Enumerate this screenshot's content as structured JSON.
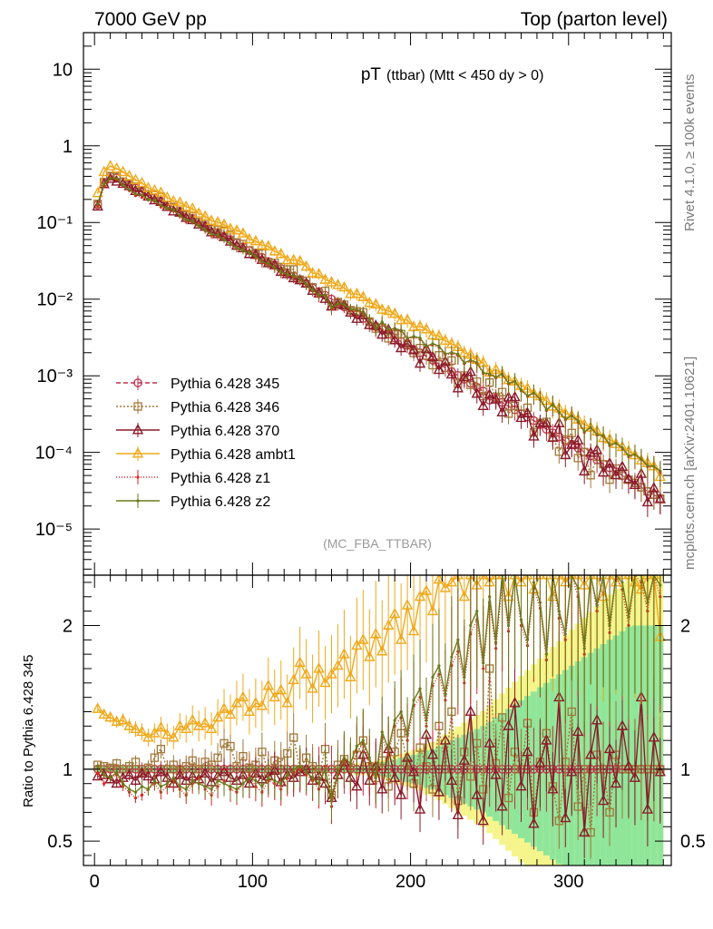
{
  "header": {
    "left": "7000 GeV pp",
    "right": "Top (parton level)"
  },
  "side_labels": {
    "top": "Rivet 4.1.0, ≥ 100k events",
    "bottom": "mcplots.cern.ch [arXiv:2401.10621]"
  },
  "chart_data": {
    "type": "line",
    "title": "pT",
    "title_suffix": "(ttbar) (Mtt < 450 dy > 0)",
    "watermark": "(MC_FBA_TTBAR)",
    "xlabel": "",
    "ylabel": "",
    "ratio_ylabel": "Ratio to Pythia 6.428 345",
    "xlim": [
      -7,
      365
    ],
    "ylim": [
      2.5e-06,
      30
    ],
    "ratio_ylim": [
      0.33,
      2.35
    ],
    "yscale": "log",
    "x_ticks": [
      "0",
      "100",
      "200",
      "300"
    ],
    "y_ticks": [
      "10",
      "1",
      "10⁻¹",
      "10⁻²",
      "10⁻³",
      "10⁻⁴",
      "10⁻⁵"
    ],
    "ratio_ticks": [
      "2",
      "1",
      "0.5"
    ],
    "legend_position": "bottom-left",
    "x": [
      2,
      6,
      10,
      14,
      18,
      22,
      26,
      30,
      34,
      38,
      42,
      46,
      50,
      54,
      58,
      62,
      66,
      70,
      74,
      78,
      82,
      86,
      90,
      94,
      98,
      102,
      106,
      110,
      114,
      118,
      122,
      126,
      130,
      134,
      138,
      142,
      146,
      150,
      154,
      158,
      162,
      166,
      170,
      174,
      178,
      182,
      186,
      190,
      194,
      198,
      202,
      206,
      210,
      214,
      218,
      222,
      226,
      230,
      234,
      238,
      242,
      246,
      250,
      254,
      258,
      262,
      266,
      270,
      274,
      278,
      282,
      286,
      290,
      294,
      298,
      302,
      306,
      310,
      314,
      318,
      322,
      326,
      330,
      334,
      338,
      342,
      346,
      350,
      354,
      358
    ],
    "reference": {
      "name": "Pythia 6.428 345",
      "values": [
        0.17,
        0.33,
        0.4,
        0.38,
        0.34,
        0.31,
        0.28,
        0.26,
        0.23,
        0.21,
        0.19,
        0.17,
        0.155,
        0.14,
        0.125,
        0.113,
        0.101,
        0.091,
        0.082,
        0.074,
        0.066,
        0.06,
        0.054,
        0.048,
        0.043,
        0.039,
        0.035,
        0.031,
        0.028,
        0.025,
        0.022,
        0.02,
        0.018,
        0.016,
        0.014,
        0.0125,
        0.0112,
        0.01,
        0.0089,
        0.0079,
        0.0071,
        0.0063,
        0.0056,
        0.005,
        0.0044,
        0.004,
        0.0035,
        0.0031,
        0.0028,
        0.0025,
        0.0022,
        0.002,
        0.0018,
        0.0016,
        0.00142,
        0.00127,
        0.00113,
        0.00101,
        0.0009,
        0.0008,
        0.00071,
        0.00063,
        0.00048,
        0.00051,
        0.00045,
        0.0004,
        0.00036,
        0.00032,
        0.00029,
        0.00026,
        0.00023,
        0.0002,
        0.00018,
        0.00016,
        0.00014,
        0.000128,
        0.000114,
        0.000101,
        9e-05,
        8e-05,
        7e-05,
        6.3e-05,
        5.6e-05,
        5e-05,
        4.4e-05,
        4e-05,
        3.5e-05,
        3.1e-05,
        2.8e-05,
        2.5e-05
      ]
    },
    "uncertainty_band_half_width": [
      0.02,
      0.02,
      0.02,
      0.02,
      0.02,
      0.02,
      0.02,
      0.02,
      0.02,
      0.02,
      0.02,
      0.02,
      0.02,
      0.02,
      0.02,
      0.02,
      0.02,
      0.02,
      0.02,
      0.02,
      0.02,
      0.02,
      0.02,
      0.02,
      0.02,
      0.02,
      0.02,
      0.02,
      0.02,
      0.02,
      0.02,
      0.02,
      0.02,
      0.02,
      0.02,
      0.02,
      0.02,
      0.02,
      0.02,
      0.02,
      0.02,
      0.03,
      0.03,
      0.03,
      0.04,
      0.05,
      0.06,
      0.07,
      0.08,
      0.09,
      0.1,
      0.11,
      0.13,
      0.14,
      0.16,
      0.18,
      0.2,
      0.22,
      0.24,
      0.26,
      0.28,
      0.3,
      0.33,
      0.36,
      0.39,
      0.42,
      0.45,
      0.48,
      0.51,
      0.54,
      0.57,
      0.6,
      0.63,
      0.66,
      0.69,
      0.72,
      0.75,
      0.78,
      0.81,
      0.84,
      0.87,
      0.9,
      0.93,
      0.96,
      0.99,
      1.0,
      1.0,
      1.0,
      1.0,
      1.0
    ],
    "series": [
      {
        "name": "Pythia 6.428 345",
        "color": "#c0304c",
        "marker": "circle",
        "dash": "5,3",
        "ratio": [
          1.0,
          1.0,
          1.0,
          1.0,
          1.0,
          1.0,
          1.0,
          1.0,
          1.0,
          1.0,
          1.0,
          1.0,
          1.0,
          1.0,
          1.0,
          1.0,
          1.0,
          1.0,
          1.0,
          1.0,
          1.0,
          1.0,
          1.0,
          1.0,
          1.0,
          1.0,
          1.0,
          1.0,
          1.0,
          1.0,
          1.0,
          1.0,
          1.0,
          1.0,
          1.0,
          1.0,
          1.0,
          1.0,
          1.0,
          1.0,
          1.0,
          1.0,
          1.0,
          1.0,
          1.0,
          1.0,
          1.0,
          1.0,
          1.0,
          1.0,
          1.0,
          1.0,
          1.0,
          1.0,
          1.0,
          1.0,
          1.0,
          1.0,
          1.0,
          1.0,
          1.0,
          1.0,
          1.0,
          1.0,
          1.0,
          1.0,
          1.0,
          1.0,
          1.0,
          1.0,
          1.0,
          1.0,
          1.0,
          1.0,
          1.0,
          1.0,
          1.0,
          1.0,
          1.0,
          1.0,
          1.0,
          1.0,
          1.0,
          1.0,
          1.0,
          1.0,
          1.0,
          1.0,
          1.0,
          1.0
        ]
      },
      {
        "name": "Pythia 6.428 346",
        "color": "#a07838",
        "marker": "square",
        "dash": "2,2",
        "ratio": [
          1.03,
          1.02,
          1.01,
          1.04,
          1.0,
          1.02,
          1.05,
          0.98,
          1.01,
          1.08,
          1.14,
          1.0,
          1.03,
          0.99,
          1.02,
          1.06,
          1.0,
          1.05,
          1.03,
          1.08,
          1.18,
          1.16,
          1.02,
          1.09,
          1.01,
          1.03,
          1.12,
          0.98,
          1.06,
          1.05,
          1.11,
          1.22,
          1.0,
          1.08,
          1.02,
          0.96,
          1.14,
          0.82,
          1.03,
          1.07,
          1.01,
          1.1,
          1.2,
          1.02,
          0.94,
          1.06,
          0.88,
          1.12,
          1.25,
          1.04,
          0.9,
          1.15,
          1.02,
          0.86,
          1.3,
          1.0,
          1.4,
          0.78,
          1.12,
          0.95,
          1.18,
          0.86,
          1.7,
          1.04,
          1.36,
          0.8,
          1.12,
          1.0,
          1.32,
          0.7,
          1.05,
          1.25,
          0.88,
          0.64,
          1.05,
          1.4,
          0.74,
          1.0,
          0.56,
          1.1,
          1.0,
          0.7,
          1.1,
          1.0,
          1.0,
          1.0,
          1.0,
          1.0,
          1.0,
          1.0
        ]
      },
      {
        "name": "Pythia 6.428 370",
        "color": "#8b1a2a",
        "marker": "triangle",
        "dash": "",
        "ratio": [
          0.95,
          0.96,
          0.93,
          0.9,
          0.94,
          0.96,
          0.92,
          0.97,
          0.95,
          0.93,
          0.98,
          0.94,
          0.9,
          0.96,
          0.92,
          0.95,
          0.93,
          0.97,
          0.91,
          0.95,
          0.98,
          0.94,
          0.92,
          0.96,
          0.9,
          0.97,
          0.93,
          0.95,
          0.99,
          0.91,
          0.96,
          0.94,
          0.98,
          1.0,
          0.92,
          0.95,
          0.9,
          0.8,
          0.96,
          1.05,
          0.94,
          0.88,
          1.1,
          0.92,
          1.02,
          0.86,
          1.14,
          0.94,
          0.82,
          1.08,
          0.98,
          0.72,
          1.24,
          1.1,
          0.84,
          1.2,
          0.92,
          0.68,
          1.06,
          1.4,
          0.82,
          0.64,
          1.18,
          0.96,
          0.74,
          1.3,
          1.46,
          0.88,
          1.12,
          0.62,
          1.04,
          1.2,
          0.86,
          1.5,
          0.66,
          0.98,
          1.26,
          0.56,
          1.1,
          1.34,
          0.78,
          1.14,
          0.9,
          1.3,
          1.02,
          0.94,
          1.5,
          0.72,
          1.22,
          0.98
        ]
      },
      {
        "name": "Pythia 6.428 ambt1",
        "color": "#f0a818",
        "marker": "triangle",
        "dash": "",
        "ratio": [
          1.42,
          1.38,
          1.36,
          1.33,
          1.34,
          1.3,
          1.28,
          1.26,
          1.22,
          1.25,
          1.29,
          1.24,
          1.22,
          1.3,
          1.28,
          1.34,
          1.3,
          1.32,
          1.28,
          1.36,
          1.42,
          1.38,
          1.46,
          1.5,
          1.4,
          1.46,
          1.44,
          1.58,
          1.5,
          1.55,
          1.46,
          1.62,
          1.74,
          1.66,
          1.56,
          1.7,
          1.6,
          1.66,
          1.72,
          1.8,
          1.64,
          1.86,
          1.9,
          1.78,
          1.94,
          1.82,
          2.0,
          2.08,
          1.9,
          2.14,
          1.96,
          2.2,
          2.24,
          2.1,
          2.32,
          2.26,
          2.3,
          2.35,
          2.2,
          2.35,
          2.28,
          2.35,
          2.3,
          2.35,
          2.35,
          2.2,
          2.35,
          2.3,
          2.35,
          2.25,
          2.35,
          2.35,
          2.2,
          2.35,
          2.3,
          2.35,
          2.35,
          2.28,
          2.35,
          2.35,
          2.2,
          2.35,
          2.3,
          2.35,
          2.35,
          2.3,
          2.25,
          2.35,
          2.35,
          1.92
        ]
      },
      {
        "name": "Pythia 6.428 z1",
        "color": "#e02020",
        "marker": "dot",
        "dash": "1,2",
        "ratio": [
          0.97,
          0.9,
          0.94,
          0.96,
          0.88,
          0.84,
          0.8,
          0.82,
          0.86,
          0.9,
          0.84,
          0.88,
          0.92,
          0.86,
          0.82,
          0.9,
          0.94,
          0.86,
          0.82,
          0.88,
          0.92,
          0.86,
          0.84,
          0.9,
          0.96,
          0.88,
          0.84,
          0.92,
          0.9,
          0.86,
          0.94,
          0.98,
          1.0,
          0.96,
          0.92,
          0.86,
          1.02,
          0.74,
          0.96,
          1.06,
          1.0,
          1.12,
          1.18,
          1.04,
          0.9,
          1.22,
          1.1,
          1.3,
          1.36,
          1.2,
          1.44,
          1.5,
          1.3,
          1.58,
          1.66,
          1.48,
          1.72,
          1.82,
          1.6,
          1.94,
          2.04,
          1.7,
          2.16,
          1.84,
          2.3,
          1.96,
          2.35,
          2.0,
          1.86,
          2.26,
          2.12,
          1.76,
          2.35,
          2.05,
          1.9,
          2.35,
          2.2,
          1.8,
          2.35,
          2.1,
          2.35,
          1.95,
          2.35,
          2.25,
          2.0,
          2.35,
          2.3,
          2.1,
          2.35,
          2.2
        ]
      },
      {
        "name": "Pythia 6.428 z2",
        "color": "#6b7a18",
        "marker": "dot",
        "dash": "",
        "ratio": [
          1.02,
          0.96,
          0.94,
          0.98,
          0.9,
          0.86,
          0.84,
          0.88,
          0.86,
          0.92,
          0.88,
          0.9,
          0.94,
          0.88,
          0.86,
          0.92,
          0.9,
          0.88,
          0.86,
          0.92,
          0.9,
          0.88,
          0.86,
          0.9,
          0.94,
          0.92,
          0.88,
          0.94,
          0.92,
          0.9,
          0.96,
          1.0,
          1.02,
          0.98,
          0.94,
          0.9,
          1.0,
          0.78,
          0.98,
          1.08,
          1.04,
          1.16,
          1.2,
          1.08,
          0.94,
          1.26,
          1.14,
          1.34,
          1.4,
          1.24,
          1.48,
          1.56,
          1.34,
          1.64,
          1.72,
          1.52,
          1.78,
          1.9,
          1.64,
          2.0,
          2.1,
          1.74,
          2.2,
          1.88,
          2.35,
          2.0,
          2.35,
          2.04,
          1.9,
          2.3,
          2.16,
          1.8,
          2.35,
          2.1,
          1.94,
          2.35,
          2.26,
          1.84,
          2.35,
          2.14,
          2.35,
          2.0,
          2.35,
          2.3,
          2.06,
          2.35,
          2.35,
          2.16,
          2.35,
          2.28
        ]
      }
    ]
  }
}
